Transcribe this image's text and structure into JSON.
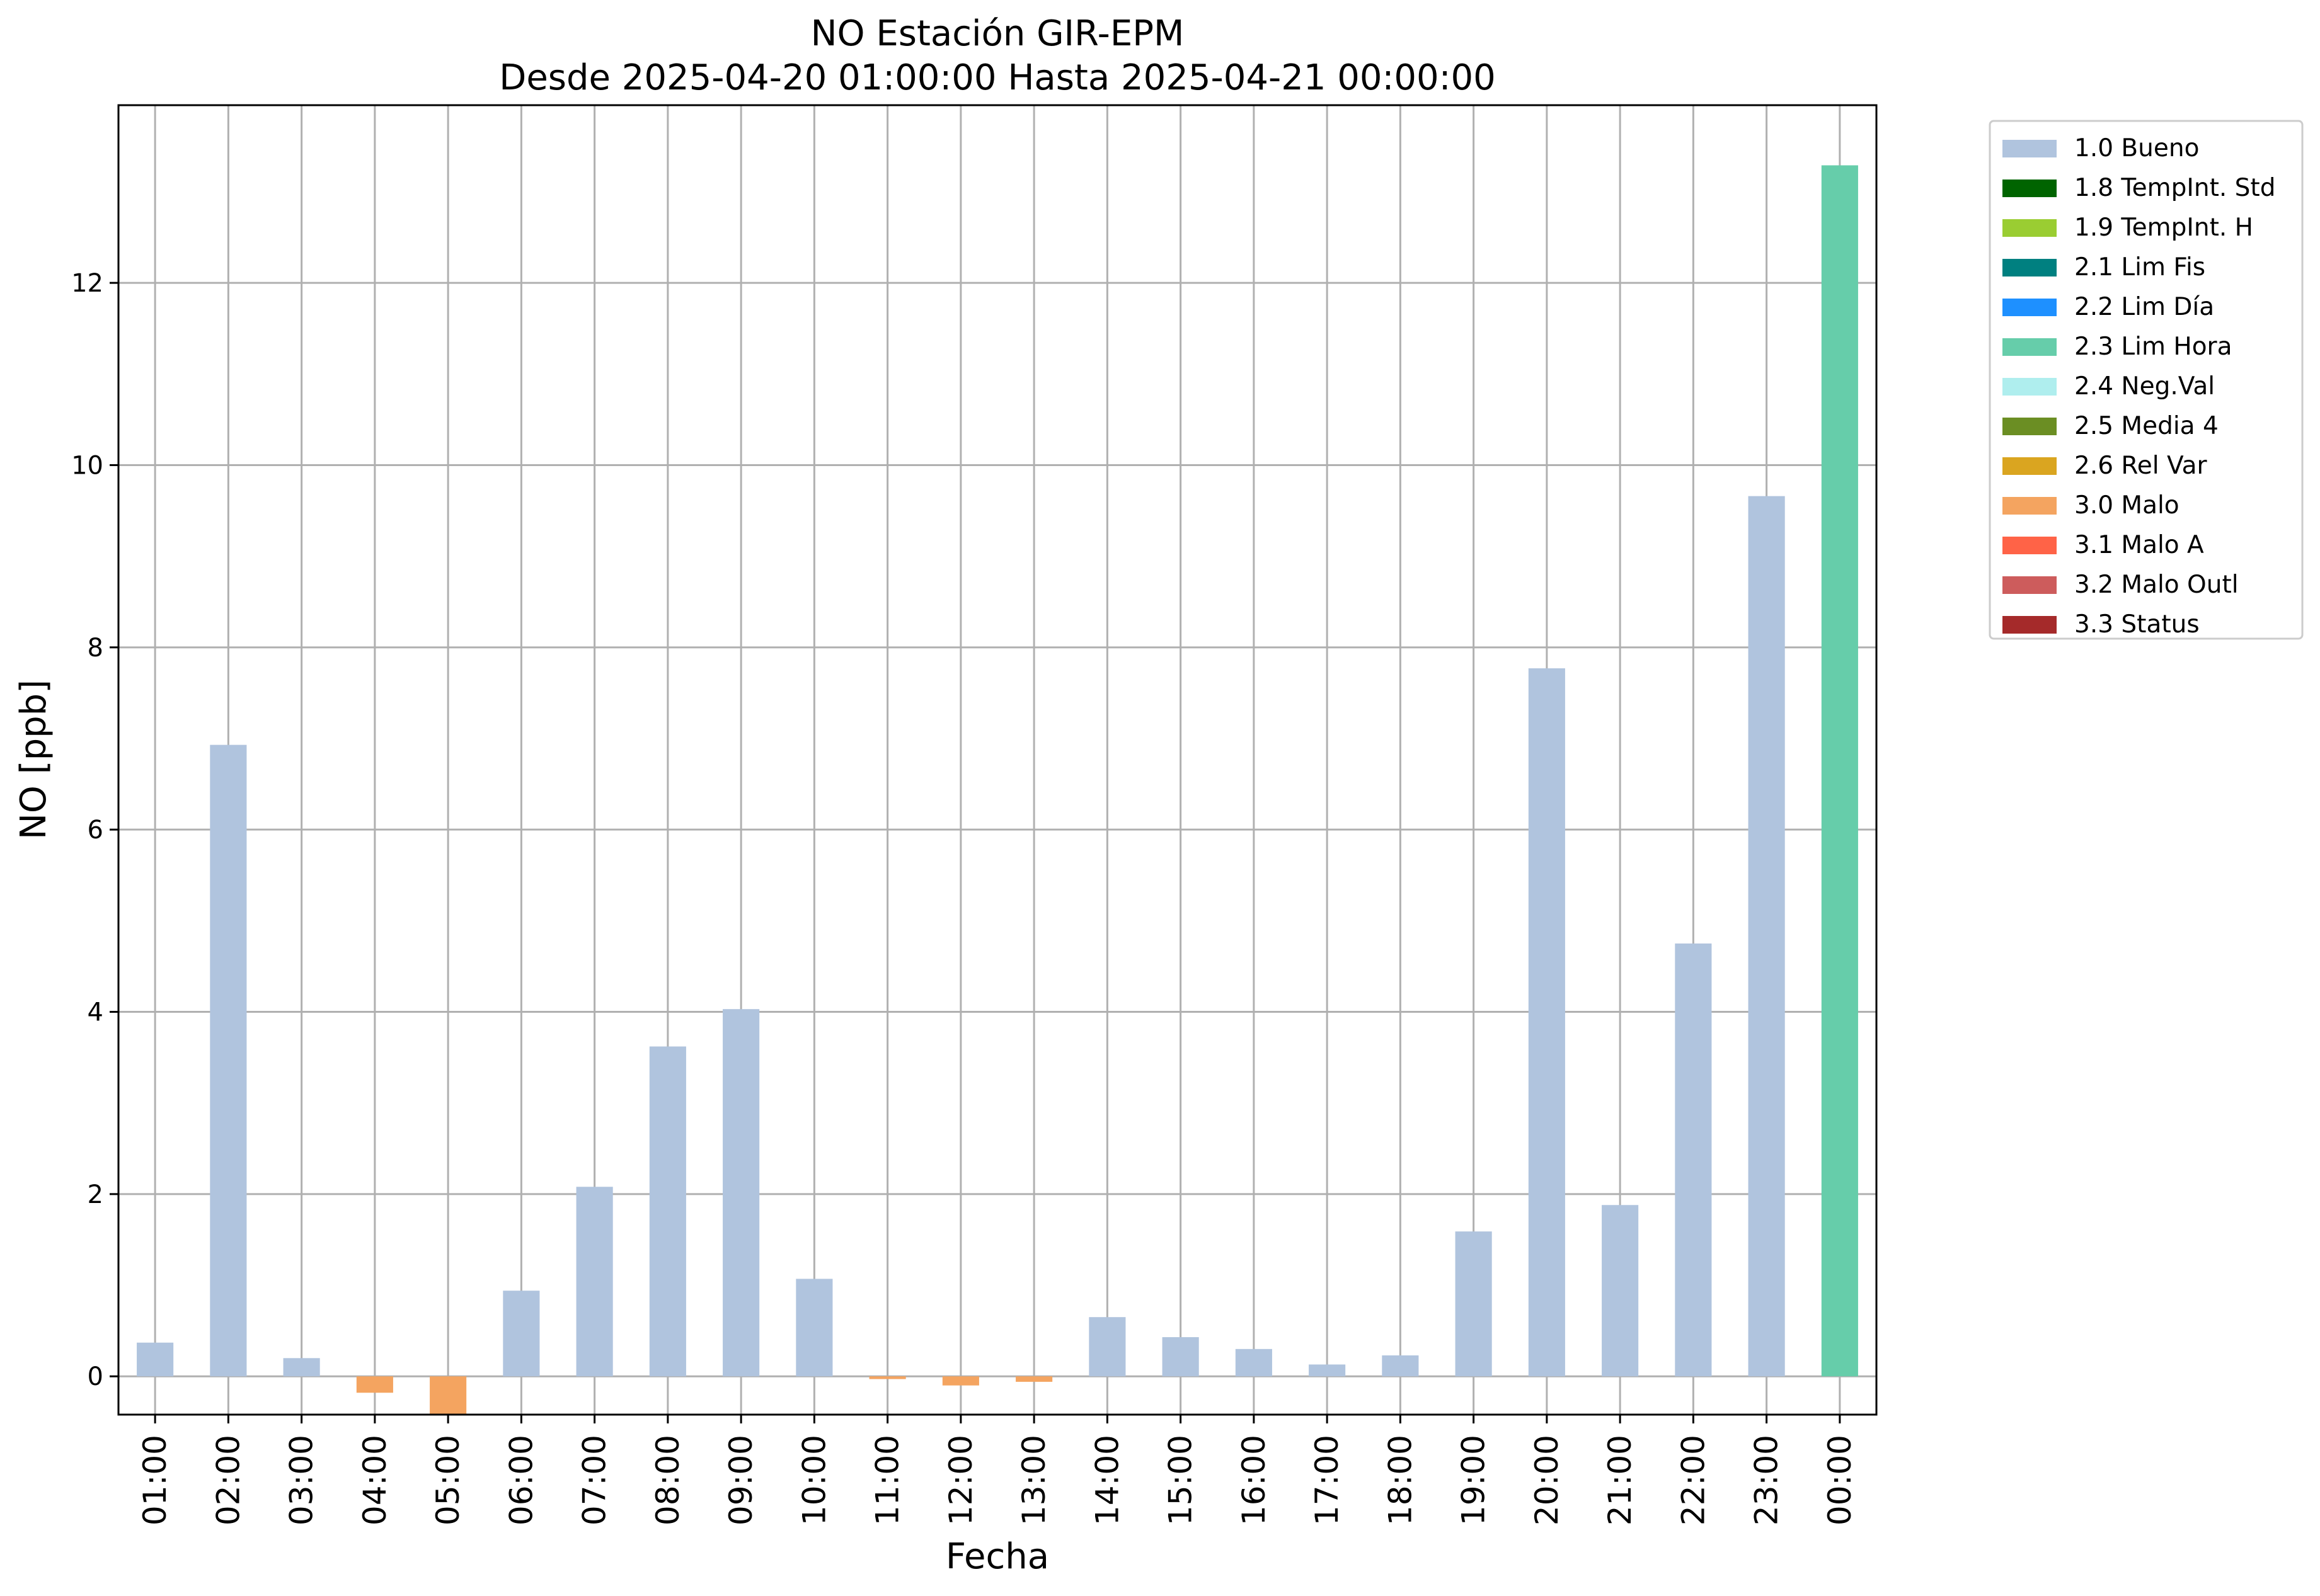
{
  "chart_data": {
    "type": "bar",
    "title": "NO Estación GIR-EPM",
    "subtitle": "Desde 2025-04-20 01:00:00 Hasta 2025-04-21 00:00:00",
    "xlabel": "Fecha",
    "ylabel": "NO [ppb]",
    "ylim": [
      -0.42,
      13.95
    ],
    "yticks": [
      0,
      2,
      4,
      6,
      8,
      10,
      12
    ],
    "grid": true,
    "legend_position": "outside-top-right",
    "categories": [
      "01:00",
      "02:00",
      "03:00",
      "04:00",
      "05:00",
      "06:00",
      "07:00",
      "08:00",
      "09:00",
      "10:00",
      "11:00",
      "12:00",
      "13:00",
      "14:00",
      "15:00",
      "16:00",
      "17:00",
      "18:00",
      "19:00",
      "20:00",
      "21:00",
      "22:00",
      "23:00",
      "00:00"
    ],
    "values": [
      0.37,
      6.93,
      0.2,
      -0.18,
      -0.42,
      0.94,
      2.08,
      3.62,
      4.03,
      1.07,
      -0.03,
      -0.1,
      -0.06,
      0.65,
      0.43,
      0.3,
      0.13,
      0.23,
      1.59,
      7.77,
      1.88,
      4.75,
      9.66,
      13.29
    ],
    "flags": [
      "1.0 Bueno",
      "1.0 Bueno",
      "1.0 Bueno",
      "3.0 Malo",
      "3.0 Malo",
      "1.0 Bueno",
      "1.0 Bueno",
      "1.0 Bueno",
      "1.0 Bueno",
      "1.0 Bueno",
      "3.0 Malo",
      "3.0 Malo",
      "3.0 Malo",
      "1.0 Bueno",
      "1.0 Bueno",
      "1.0 Bueno",
      "1.0 Bueno",
      "1.0 Bueno",
      "1.0 Bueno",
      "1.0 Bueno",
      "1.0 Bueno",
      "1.0 Bueno",
      "1.0 Bueno",
      "2.3 Lim Hora"
    ],
    "legend": [
      {
        "label": "1.0 Bueno",
        "color": "#b0c4de"
      },
      {
        "label": "1.8 TempInt. Std",
        "color": "#006400"
      },
      {
        "label": "1.9 TempInt. H",
        "color": "#9acd32"
      },
      {
        "label": "2.1 Lim Fis",
        "color": "#008080"
      },
      {
        "label": "2.2 Lim Día",
        "color": "#1e90ff"
      },
      {
        "label": "2.3 Lim Hora",
        "color": "#66cdaa"
      },
      {
        "label": "2.4 Neg.Val",
        "color": "#afeeee"
      },
      {
        "label": "2.5 Media 4",
        "color": "#6b8e23"
      },
      {
        "label": "2.6 Rel Var",
        "color": "#daa520"
      },
      {
        "label": "3.0 Malo",
        "color": "#f4a460"
      },
      {
        "label": "3.1 Malo A",
        "color": "#ff6347"
      },
      {
        "label": "3.2 Malo Outl",
        "color": "#cd5c5c"
      },
      {
        "label": "3.3 Status",
        "color": "#a52a2a"
      }
    ]
  }
}
